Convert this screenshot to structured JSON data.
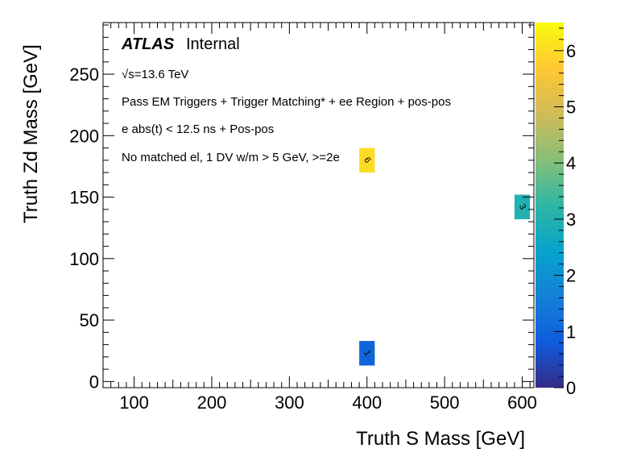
{
  "chart_data": {
    "type": "heatmap",
    "title": "",
    "xlabel": "Truth S Mass [GeV]",
    "ylabel": "Truth Zd Mass [GeV]",
    "xlim": [
      60,
      615
    ],
    "ylim": [
      -5,
      292
    ],
    "x_ticks": [
      100,
      200,
      300,
      400,
      500,
      600
    ],
    "y_ticks": [
      0,
      50,
      100,
      150,
      200,
      250
    ],
    "x_ticks_text": [
      "100",
      "200",
      "300",
      "400",
      "500",
      "600"
    ],
    "y_ticks_text": [
      "0",
      "50",
      "100",
      "150",
      "200",
      "250"
    ],
    "cells": [
      {
        "x": 400,
        "y": 180,
        "dx": 20,
        "dy": 20,
        "value": 6,
        "label": "6"
      },
      {
        "x": 600,
        "y": 142,
        "dx": 20,
        "dy": 20,
        "value": 3,
        "label": "3"
      },
      {
        "x": 400,
        "y": 23,
        "dx": 20,
        "dy": 20,
        "value": 1,
        "label": "1"
      }
    ],
    "colorbar": {
      "min": 0,
      "max": 6.5,
      "ticks": [
        0,
        1,
        2,
        3,
        4,
        5,
        6
      ],
      "ticks_text": [
        "0",
        "1",
        "2",
        "3",
        "4",
        "5",
        "6"
      ]
    },
    "annotations": {
      "atlas": "ATLAS",
      "internal": "Internal",
      "energy": "√s=13.6 TeV",
      "line1": "Pass EM Triggers + Trigger Matching* + ee Region + pos-pos",
      "line2": "e abs(t) < 12.5 ns + Pos-pos",
      "line3": "No matched el, 1 DV w/m > 5 GeV, >=2e"
    },
    "colormap": [
      "#352a87",
      "#0f5cdd",
      "#1481d6",
      "#06a4ca",
      "#2eb7a4",
      "#87bf77",
      "#d1bb59",
      "#fec832",
      "#f9fb0e"
    ]
  }
}
